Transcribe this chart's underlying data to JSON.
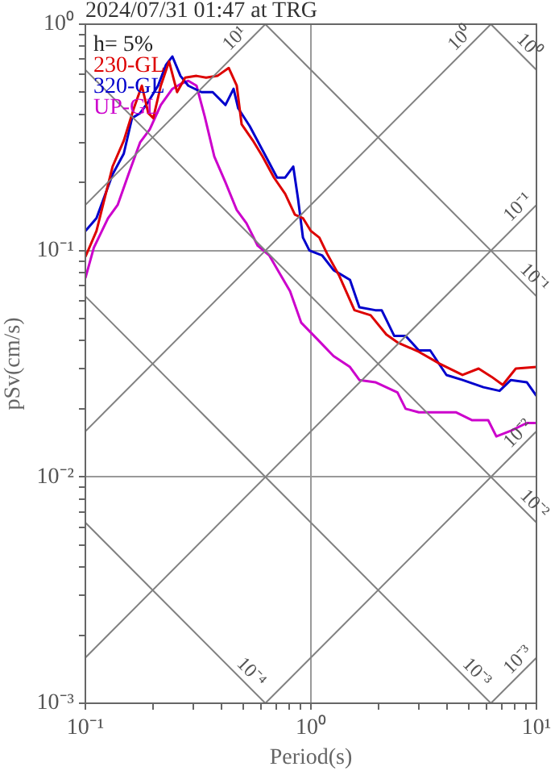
{
  "chart_data": {
    "type": "line",
    "title": "2024/07/31 01:47 at TRG",
    "xlabel": "Period(s)",
    "ylabel": "pSv(cm/s)",
    "log": "xy",
    "grid": true,
    "legend": "top left",
    "marker": "none",
    "line_style": "solid",
    "xlim": [
      0.1,
      10
    ],
    "ylim": [
      0.001,
      1
    ],
    "xticks": [
      {
        "value": 0.1,
        "label": "10⁻¹"
      },
      {
        "value": 0.2,
        "label": null
      },
      {
        "value": 0.3,
        "label": null
      },
      {
        "value": 0.4,
        "label": null
      },
      {
        "value": 0.5,
        "label": null
      },
      {
        "value": 0.6,
        "label": null
      },
      {
        "value": 0.7,
        "label": null
      },
      {
        "value": 0.8,
        "label": null
      },
      {
        "value": 0.9,
        "label": null
      },
      {
        "value": 1,
        "label": "10⁰"
      },
      {
        "value": 2,
        "label": null
      },
      {
        "value": 3,
        "label": null
      },
      {
        "value": 4,
        "label": null
      },
      {
        "value": 5,
        "label": null
      },
      {
        "value": 6,
        "label": null
      },
      {
        "value": 7,
        "label": null
      },
      {
        "value": 8,
        "label": null
      },
      {
        "value": 9,
        "label": null
      },
      {
        "value": 10,
        "label": "10¹"
      }
    ],
    "yticks": [
      {
        "value": 0.001,
        "label": "10⁻³"
      },
      {
        "value": 0.002,
        "label": null
      },
      {
        "value": 0.003,
        "label": null
      },
      {
        "value": 0.004,
        "label": null
      },
      {
        "value": 0.005,
        "label": null
      },
      {
        "value": 0.006,
        "label": null
      },
      {
        "value": 0.007,
        "label": null
      },
      {
        "value": 0.008,
        "label": null
      },
      {
        "value": 0.009,
        "label": null
      },
      {
        "value": 0.01,
        "label": "10⁻²"
      },
      {
        "value": 0.02,
        "label": null
      },
      {
        "value": 0.03,
        "label": null
      },
      {
        "value": 0.04,
        "label": null
      },
      {
        "value": 0.05,
        "label": null
      },
      {
        "value": 0.06,
        "label": null
      },
      {
        "value": 0.07,
        "label": null
      },
      {
        "value": 0.08,
        "label": null
      },
      {
        "value": 0.09,
        "label": null
      },
      {
        "value": 0.1,
        "label": "10⁻¹"
      },
      {
        "value": 0.2,
        "label": null
      },
      {
        "value": 0.3,
        "label": null
      },
      {
        "value": 0.4,
        "label": null
      },
      {
        "value": 0.5,
        "label": null
      },
      {
        "value": 0.6,
        "label": null
      },
      {
        "value": 0.7,
        "label": null
      },
      {
        "value": 0.8,
        "label": null
      },
      {
        "value": 0.9,
        "label": null
      },
      {
        "value": 1,
        "label": "10⁰"
      }
    ],
    "annotations": [
      "h= 5%",
      {
        "text": "10¹",
        "x": 0.5,
        "y": 0.796
      },
      {
        "text": "10⁰",
        "x": 5,
        "y": 0.796
      },
      {
        "text": "10⁻¹",
        "x": 9,
        "y": 0.143
      },
      {
        "text": "10⁻²",
        "x": 9,
        "y": 0.0143
      },
      {
        "text": "10⁻³",
        "x": 9,
        "y": 0.00143
      },
      {
        "text": "10⁰",
        "x": 8.5,
        "y": 0.739
      },
      {
        "text": "10⁻¹",
        "x": 9,
        "y": 0.0698
      },
      {
        "text": "10⁻²",
        "x": 9,
        "y": 0.00698
      },
      {
        "text": "10⁻³",
        "x": 5,
        "y": 0.00126
      },
      {
        "text": "10⁻⁴",
        "x": 0.5,
        "y": 0.00126
      }
    ],
    "series": [
      {
        "color": "#808080",
        "x": [
          6.28,
          10
        ],
        "values": [
          0.001,
          0.00159
        ]
      },
      {
        "color": "#808080",
        "x": [
          0.628,
          10
        ],
        "values": [
          0.001,
          0.0159
        ]
      },
      {
        "color": "#808080",
        "x": [
          0.1,
          10
        ],
        "values": [
          0.00159,
          0.159
        ]
      },
      {
        "color": "#808080",
        "x": [
          0.1,
          6.28
        ],
        "values": [
          0.0159,
          1
        ]
      },
      {
        "color": "#808080",
        "x": [
          0.1,
          0.628
        ],
        "values": [
          0.159,
          1
        ]
      },
      {
        "color": "#808080",
        "x": [
          0.1,
          0.628
        ],
        "values": [
          0.00628,
          0.001
        ]
      },
      {
        "color": "#808080",
        "x": [
          0.1,
          6.28
        ],
        "values": [
          0.0628,
          0.001
        ]
      },
      {
        "color": "#808080",
        "x": [
          0.1,
          10
        ],
        "values": [
          0.628,
          0.00628
        ]
      },
      {
        "color": "#808080",
        "x": [
          0.628,
          10
        ],
        "values": [
          1,
          0.0628
        ]
      },
      {
        "color": "#808080",
        "x": [
          6.28,
          10
        ],
        "values": [
          1,
          0.628
        ]
      },
      {
        "name": "230-GL",
        "color": "#dd0000",
        "x": [
          0.1,
          0.112,
          0.132,
          0.148,
          0.164,
          0.178,
          0.19,
          0.2,
          0.216,
          0.235,
          0.255,
          0.277,
          0.311,
          0.343,
          0.385,
          0.432,
          0.469,
          0.493,
          0.553,
          0.611,
          0.686,
          0.769,
          0.849,
          0.922,
          1.0,
          1.09,
          1.18,
          1.33,
          1.56,
          1.84,
          2.16,
          2.42,
          3.01,
          3.73,
          4.7,
          5.54,
          6.32,
          7.09,
          8.1,
          10
        ],
        "values": [
          0.0938,
          0.122,
          0.235,
          0.306,
          0.425,
          0.535,
          0.405,
          0.385,
          0.535,
          0.685,
          0.501,
          0.581,
          0.591,
          0.581,
          0.591,
          0.641,
          0.535,
          0.361,
          0.306,
          0.26,
          0.21,
          0.178,
          0.144,
          0.139,
          0.122,
          0.114,
          0.0968,
          0.078,
          0.0545,
          0.0518,
          0.0426,
          0.0393,
          0.0357,
          0.0316,
          0.0282,
          0.0301,
          0.0277,
          0.0255,
          0.0301,
          0.0306
        ]
      },
      {
        "name": "320-GL",
        "color": "#0000cc",
        "x": [
          0.1,
          0.112,
          0.132,
          0.148,
          0.161,
          0.175,
          0.19,
          0.21,
          0.228,
          0.243,
          0.264,
          0.286,
          0.327,
          0.367,
          0.418,
          0.454,
          0.476,
          0.535,
          0.632,
          0.708,
          0.769,
          0.835,
          0.877,
          0.922,
          0.985,
          1.12,
          1.26,
          1.49,
          1.64,
          1.93,
          2.06,
          2.34,
          2.63,
          3.01,
          3.38,
          3.99,
          4.7,
          5.82,
          6.86,
          7.7,
          9.06,
          10
        ],
        "values": [
          0.122,
          0.139,
          0.217,
          0.268,
          0.385,
          0.405,
          0.454,
          0.535,
          0.663,
          0.72,
          0.591,
          0.535,
          0.501,
          0.501,
          0.44,
          0.518,
          0.425,
          0.355,
          0.26,
          0.21,
          0.21,
          0.235,
          0.169,
          0.114,
          0.1,
          0.0953,
          0.082,
          0.0742,
          0.0562,
          0.0545,
          0.0545,
          0.042,
          0.042,
          0.0362,
          0.0362,
          0.0282,
          0.0268,
          0.0249,
          0.024,
          0.0268,
          0.0262,
          0.0228
        ]
      },
      {
        "name": "UP-GL",
        "color": "#cc00cc",
        "x": [
          0.1,
          0.109,
          0.126,
          0.139,
          0.156,
          0.175,
          0.193,
          0.216,
          0.243,
          0.264,
          0.286,
          0.311,
          0.338,
          0.373,
          0.418,
          0.469,
          0.518,
          0.581,
          0.653,
          0.719,
          0.808,
          0.906,
          1.07,
          1.26,
          1.49,
          1.64,
          1.93,
          2.42,
          2.63,
          3.01,
          4.39,
          5.19,
          6.11,
          6.64,
          7.7,
          9.06,
          10
        ],
        "values": [
          0.0755,
          0.103,
          0.139,
          0.159,
          0.22,
          0.301,
          0.343,
          0.44,
          0.518,
          0.544,
          0.562,
          0.535,
          0.392,
          0.26,
          0.2,
          0.151,
          0.132,
          0.105,
          0.0953,
          0.0807,
          0.0662,
          0.048,
          0.0405,
          0.0342,
          0.0306,
          0.0268,
          0.0262,
          0.0236,
          0.02,
          0.0193,
          0.0193,
          0.0178,
          0.0178,
          0.0151,
          0.016,
          0.0173,
          0.0173
        ]
      }
    ]
  }
}
